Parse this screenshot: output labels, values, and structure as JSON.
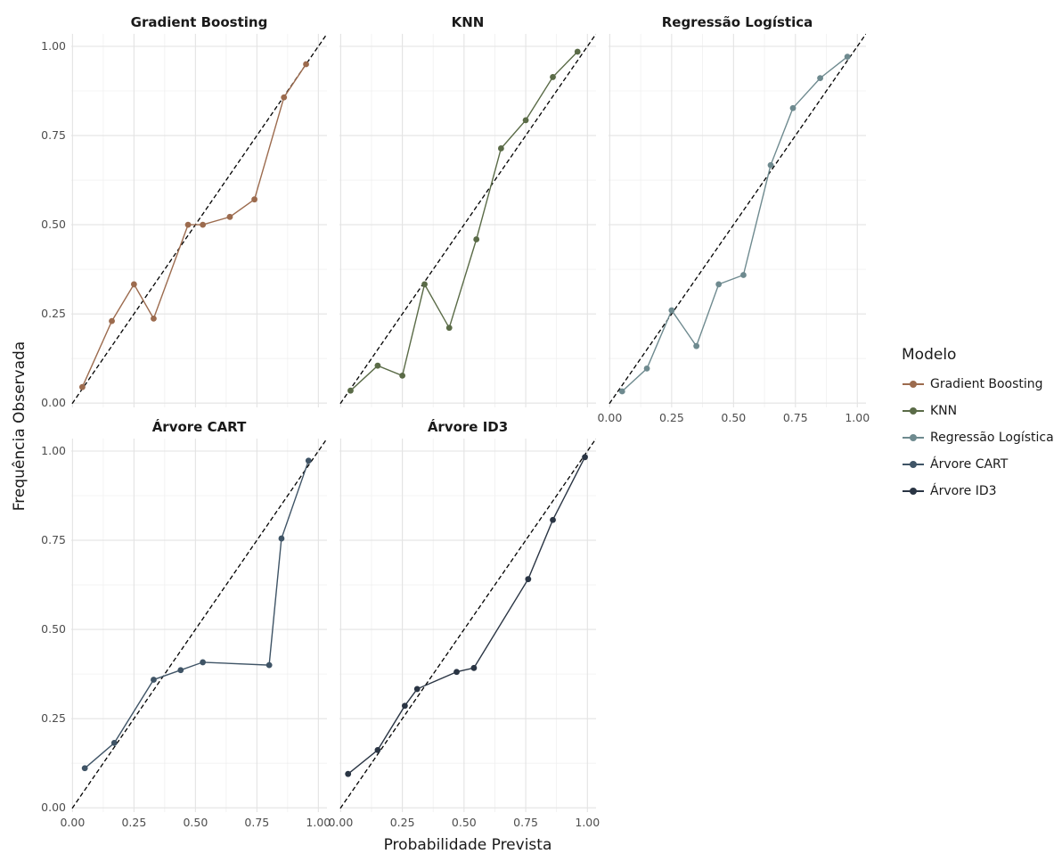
{
  "figure": {
    "xlabel": "Probabilidade Prevista",
    "ylabel": "Frequência Observada",
    "legend": {
      "title": "Modelo",
      "position": "right"
    }
  },
  "chart_data": [
    {
      "type": "line",
      "title": "Gradient Boosting",
      "name": "Gradient Boosting",
      "color": "#9c6b4e",
      "xlim": [
        0,
        1
      ],
      "ylim": [
        0,
        1
      ],
      "x": [
        0.04,
        0.16,
        0.25,
        0.33,
        0.47,
        0.53,
        0.64,
        0.74,
        0.86,
        0.95
      ],
      "y": [
        0.045,
        0.23,
        0.333,
        0.237,
        0.5,
        0.5,
        0.522,
        0.571,
        0.857,
        0.95
      ]
    },
    {
      "type": "line",
      "title": "KNN",
      "name": "KNN",
      "color": "#5a6b47",
      "xlim": [
        0,
        1
      ],
      "ylim": [
        0,
        1
      ],
      "x": [
        0.04,
        0.15,
        0.25,
        0.34,
        0.44,
        0.55,
        0.65,
        0.75,
        0.86,
        0.96
      ],
      "y": [
        0.035,
        0.105,
        0.077,
        0.333,
        0.211,
        0.459,
        0.714,
        0.793,
        0.914,
        0.985
      ]
    },
    {
      "type": "line",
      "title": "Regressão Logística",
      "name": "Regressão Logística",
      "color": "#6e8a8f",
      "xlim": [
        0,
        1
      ],
      "ylim": [
        0,
        1
      ],
      "x": [
        0.05,
        0.15,
        0.25,
        0.35,
        0.44,
        0.54,
        0.65,
        0.74,
        0.85,
        0.96
      ],
      "y": [
        0.033,
        0.097,
        0.26,
        0.16,
        0.333,
        0.359,
        0.667,
        0.827,
        0.911,
        0.971
      ]
    },
    {
      "type": "line",
      "title": "Árvore CART",
      "name": "Árvore CART",
      "color": "#3f5466",
      "xlim": [
        0,
        1
      ],
      "ylim": [
        0,
        1
      ],
      "x": [
        0.05,
        0.17,
        0.33,
        0.44,
        0.53,
        0.8,
        0.85,
        0.96
      ],
      "y": [
        0.111,
        0.182,
        0.359,
        0.386,
        0.408,
        0.4,
        0.755,
        0.973
      ]
    },
    {
      "type": "line",
      "title": "Árvore ID3",
      "name": "Árvore ID3",
      "color": "#2a3544",
      "xlim": [
        0,
        1
      ],
      "ylim": [
        0,
        1
      ],
      "x": [
        0.03,
        0.15,
        0.26,
        0.31,
        0.47,
        0.54,
        0.76,
        0.86,
        0.99
      ],
      "y": [
        0.095,
        0.162,
        0.286,
        0.333,
        0.381,
        0.392,
        0.641,
        0.807,
        0.983
      ]
    }
  ],
  "axes": {
    "x_ticks": [
      "0.00",
      "0.25",
      "0.50",
      "0.75",
      "1.00"
    ],
    "y_ticks": [
      "0.00",
      "0.25",
      "0.50",
      "0.75",
      "1.00"
    ],
    "x_values": [
      0,
      0.25,
      0.5,
      0.75,
      1
    ],
    "y_values": [
      0,
      0.25,
      0.5,
      0.75,
      1
    ]
  }
}
